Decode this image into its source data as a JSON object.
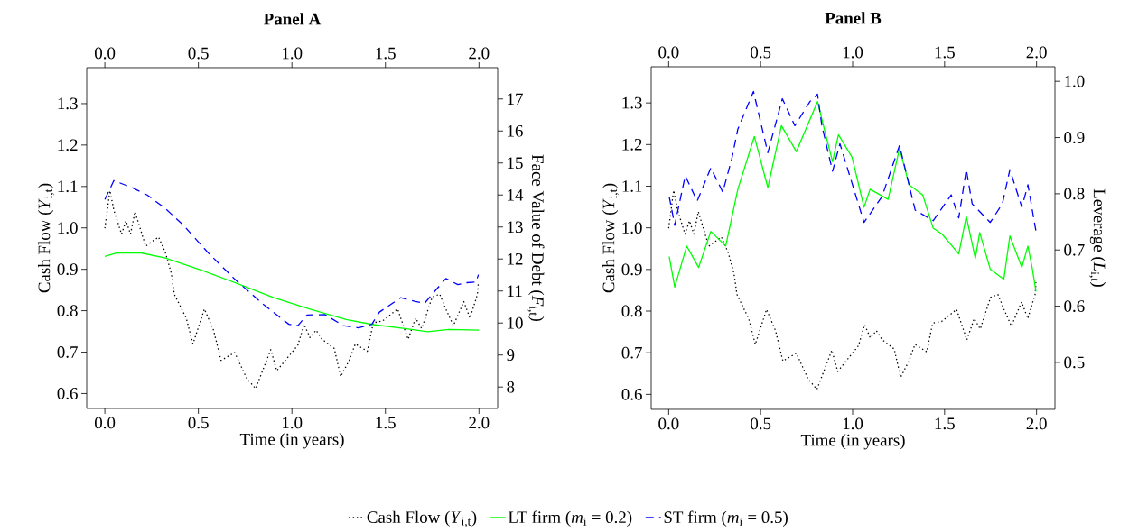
{
  "chart_data": [
    {
      "type": "line",
      "title": "**Panel A**",
      "xlabel": "Time (in years)",
      "ylabel": "Cash Flow (*Y*$_{i,t}$)",
      "y2label": "Face Value of Debt (*F*$_{i,t}$)",
      "xlim": [
        -0.097,
        2.1
      ],
      "x2lim": [
        -0.097,
        2.1
      ],
      "ylim": [
        0.564,
        1.387
      ],
      "y2lim": [
        7.33,
        17.98
      ],
      "xticks": [
        {
          "value": 0,
          "label": "0.0"
        },
        {
          "value": 0.5,
          "label": "0.5"
        },
        {
          "value": 1,
          "label": "1.0"
        },
        {
          "value": 1.5,
          "label": "1.5"
        },
        {
          "value": 2,
          "label": "2.0"
        }
      ],
      "x2ticks": [
        {
          "value": 0,
          "label": "0.0"
        },
        {
          "value": 0.5,
          "label": "0.5"
        },
        {
          "value": 1,
          "label": "1.0"
        },
        {
          "value": 1.5,
          "label": "1.5"
        },
        {
          "value": 2,
          "label": "2.0"
        }
      ],
      "yticks": [
        0.6,
        0.7,
        0.8,
        0.9,
        {
          "value": 1,
          "label": "1.0"
        },
        1.1,
        1.2,
        1.3
      ],
      "y2ticks": [
        8,
        9,
        10,
        11,
        12,
        13,
        14,
        15,
        16,
        17
      ],
      "legend": "bottom",
      "grid": false,
      "marker": "none",
      "series": [
        {
          "name": "Cash Flow (*Y*$_{i,t}$)",
          "color": "#000000",
          "line_style": "dotted",
          "axis": "y",
          "x": [
            0,
            0.027,
            0.048,
            0.089,
            0.113,
            0.137,
            0.161,
            0.218,
            0.287,
            0.323,
            0.355,
            0.371,
            0.435,
            0.471,
            0.532,
            0.581,
            0.621,
            0.694,
            0.758,
            0.806,
            0.887,
            0.919,
            1.032,
            1.065,
            1.097,
            1.129,
            1.161,
            1.226,
            1.261,
            1.306,
            1.339,
            1.403,
            1.435,
            1.484,
            1.565,
            1.621,
            1.661,
            1.694,
            1.75,
            1.79,
            1.823,
            1.863,
            1.919,
            1.952,
            1.992,
            1.997
          ],
          "values": [
            0.999,
            1.09,
            1.043,
            0.985,
            1.017,
            0.985,
            1.039,
            0.956,
            0.978,
            0.941,
            0.891,
            0.84,
            0.782,
            0.72,
            0.804,
            0.753,
            0.68,
            0.699,
            0.637,
            0.612,
            0.706,
            0.655,
            0.717,
            0.767,
            0.735,
            0.753,
            0.731,
            0.709,
            0.641,
            0.68,
            0.72,
            0.702,
            0.771,
            0.775,
            0.804,
            0.731,
            0.782,
            0.757,
            0.833,
            0.84,
            0.804,
            0.764,
            0.822,
            0.782,
            0.84,
            0.869
          ]
        },
        {
          "name": "LT firm (*m*$_{i}$ = 0.2)",
          "color": "#00ff00",
          "line_style": "solid",
          "axis": "y2",
          "x": [
            0,
            0.065,
            0.194,
            0.323,
            0.516,
            0.71,
            0.903,
            1.097,
            1.29,
            1.435,
            1.613,
            1.726,
            1.839,
            2.0
          ],
          "values": [
            12.08,
            12.19,
            12.19,
            12.03,
            11.65,
            11.23,
            10.79,
            10.43,
            10.11,
            9.95,
            9.82,
            9.73,
            9.8,
            9.78
          ]
        },
        {
          "name": "ST firm (*m*$_{i}$ = 0.5)",
          "color": "#0000ff",
          "line_style": "dashed",
          "axis": "y2",
          "x": [
            0,
            0.048,
            0.145,
            0.226,
            0.323,
            0.419,
            0.548,
            0.694,
            0.839,
            0.984,
            1.032,
            1.081,
            1.177,
            1.274,
            1.355,
            1.427,
            1.468,
            1.581,
            1.661,
            1.71,
            1.75,
            1.823,
            1.887,
            1.935,
            1.984,
            1.997
          ],
          "values": [
            13.86,
            14.45,
            14.23,
            14.0,
            13.58,
            13.06,
            12.22,
            11.37,
            10.62,
            9.96,
            9.92,
            10.25,
            10.26,
            9.92,
            9.85,
            9.96,
            10.34,
            10.79,
            10.67,
            10.62,
            10.9,
            11.39,
            11.2,
            11.26,
            11.28,
            11.51
          ]
        }
      ]
    },
    {
      "type": "line",
      "title": "**Panel B**",
      "xlabel": "Time (in years)",
      "ylabel": "Cash Flow (*Y*$_{i,t}$)",
      "y2label": "Leverage (*L*$_{i,t}$)",
      "xlim": [
        -0.095,
        2.1
      ],
      "x2lim": [
        -0.095,
        2.1
      ],
      "ylim": [
        0.564,
        1.387
      ],
      "y2lim": [
        0.4165,
        1.026
      ],
      "xticks": [
        {
          "value": 0,
          "label": "0.0"
        },
        {
          "value": 0.5,
          "label": "0.5"
        },
        {
          "value": 1,
          "label": "1.0"
        },
        {
          "value": 1.5,
          "label": "1.5"
        },
        {
          "value": 2,
          "label": "2.0"
        }
      ],
      "x2ticks": [
        {
          "value": 0,
          "label": "0.0"
        },
        {
          "value": 0.5,
          "label": "0.5"
        },
        {
          "value": 1,
          "label": "1.0"
        },
        {
          "value": 1.5,
          "label": "1.5"
        },
        {
          "value": 2,
          "label": "2.0"
        }
      ],
      "yticks": [
        0.6,
        0.7,
        0.8,
        0.9,
        {
          "value": 1,
          "label": "1.0"
        },
        1.1,
        1.2,
        1.3
      ],
      "y2ticks": [
        0.5,
        0.6,
        0.7,
        0.8,
        0.9,
        {
          "value": 1,
          "label": "1.0"
        }
      ],
      "grid": false,
      "marker": "none",
      "series": [
        {
          "color": "#000000",
          "line_style": "dotted",
          "axis": "y",
          "x": [
            0,
            0.027,
            0.048,
            0.089,
            0.113,
            0.137,
            0.161,
            0.218,
            0.287,
            0.323,
            0.355,
            0.371,
            0.435,
            0.471,
            0.532,
            0.581,
            0.621,
            0.694,
            0.758,
            0.806,
            0.887,
            0.919,
            1.032,
            1.065,
            1.097,
            1.129,
            1.161,
            1.226,
            1.261,
            1.306,
            1.339,
            1.403,
            1.435,
            1.484,
            1.565,
            1.621,
            1.661,
            1.694,
            1.75,
            1.79,
            1.823,
            1.863,
            1.919,
            1.952,
            1.992,
            1.997
          ],
          "values": [
            0.999,
            1.09,
            1.043,
            0.985,
            1.017,
            0.985,
            1.039,
            0.956,
            0.978,
            0.941,
            0.891,
            0.84,
            0.782,
            0.72,
            0.804,
            0.753,
            0.68,
            0.699,
            0.637,
            0.612,
            0.706,
            0.655,
            0.717,
            0.767,
            0.735,
            0.753,
            0.731,
            0.709,
            0.641,
            0.68,
            0.72,
            0.702,
            0.771,
            0.775,
            0.804,
            0.731,
            0.782,
            0.757,
            0.833,
            0.84,
            0.804,
            0.764,
            0.822,
            0.782,
            0.84,
            0.869
          ]
        },
        {
          "color": "#00ff00",
          "line_style": "solid",
          "axis": "y2",
          "x": [
            0.003,
            0.033,
            0.098,
            0.163,
            0.229,
            0.31,
            0.376,
            0.466,
            0.539,
            0.613,
            0.694,
            0.809,
            0.85,
            0.891,
            0.923,
            0.997,
            1.062,
            1.095,
            1.193,
            1.255,
            1.307,
            1.381,
            1.438,
            1.487,
            1.577,
            1.618,
            1.667,
            1.691,
            1.748,
            1.822,
            1.855,
            1.92,
            1.953,
            1.977,
            1.997
          ],
          "values": [
            0.688,
            0.634,
            0.707,
            0.669,
            0.733,
            0.707,
            0.808,
            0.902,
            0.811,
            0.921,
            0.875,
            0.964,
            0.91,
            0.857,
            0.905,
            0.865,
            0.776,
            0.808,
            0.79,
            0.881,
            0.816,
            0.798,
            0.739,
            0.728,
            0.693,
            0.76,
            0.685,
            0.731,
            0.666,
            0.648,
            0.725,
            0.669,
            0.707,
            0.667,
            0.626
          ]
        },
        {
          "color": "#0000ff",
          "line_style": "dashed",
          "axis": "y2",
          "x": [
            0.003,
            0.033,
            0.09,
            0.155,
            0.229,
            0.294,
            0.343,
            0.376,
            0.461,
            0.539,
            0.618,
            0.686,
            0.768,
            0.809,
            0.833,
            0.891,
            0.931,
            1.062,
            1.16,
            1.255,
            1.34,
            1.438,
            1.536,
            1.577,
            1.618,
            1.65,
            1.748,
            1.814,
            1.855,
            1.92,
            1.953,
            1.997
          ],
          "values": [
            0.795,
            0.744,
            0.832,
            0.787,
            0.846,
            0.803,
            0.862,
            0.915,
            0.982,
            0.873,
            0.969,
            0.921,
            0.964,
            0.977,
            0.921,
            0.84,
            0.889,
            0.749,
            0.795,
            0.886,
            0.771,
            0.752,
            0.798,
            0.757,
            0.843,
            0.782,
            0.749,
            0.782,
            0.843,
            0.776,
            0.816,
            0.733
          ]
        }
      ]
    }
  ]
}
